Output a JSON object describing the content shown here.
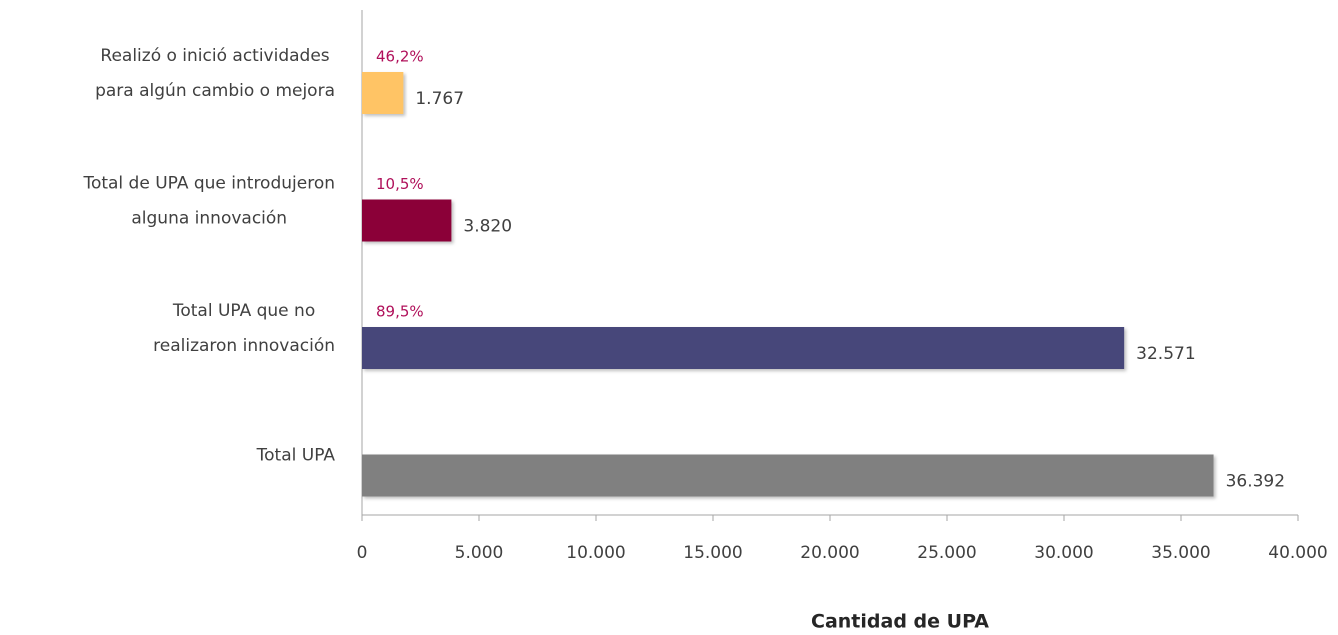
{
  "chart_data": {
    "type": "barh",
    "categories": [
      "Realizó o inició actividades\npara algún cambio o mejora",
      "Total de UPA que introdujeron\nalguna innovación",
      "Total UPA que no\nrealizaron innovación",
      "Total UPA"
    ],
    "values": [
      1767,
      3820,
      32571,
      36392
    ],
    "value_labels": [
      "1.767",
      "3.820",
      "32.571",
      "36.392"
    ],
    "percentages": [
      46.2,
      10.5,
      89.5,
      null
    ],
    "percentage_labels": [
      "46,2%",
      "10,5%",
      "89,5%",
      null
    ],
    "colors": [
      "#ffc465",
      "#8b0037",
      "#46467a",
      "#808080"
    ],
    "xlabel": "Cantidad de UPA",
    "xlim": [
      0,
      40000
    ],
    "xticks": [
      0,
      {
        "value": 5000,
        "label": "5.000"
      },
      {
        "value": 10000,
        "label": "10.000"
      },
      {
        "value": 15000,
        "label": "15.000"
      },
      {
        "value": 20000,
        "label": "20.000"
      },
      {
        "value": 25000,
        "label": "25.000"
      },
      {
        "value": 30000,
        "label": "30.000"
      },
      {
        "value": 35000,
        "label": "35.000"
      },
      {
        "value": 40000,
        "label": "40.000"
      }
    ]
  }
}
